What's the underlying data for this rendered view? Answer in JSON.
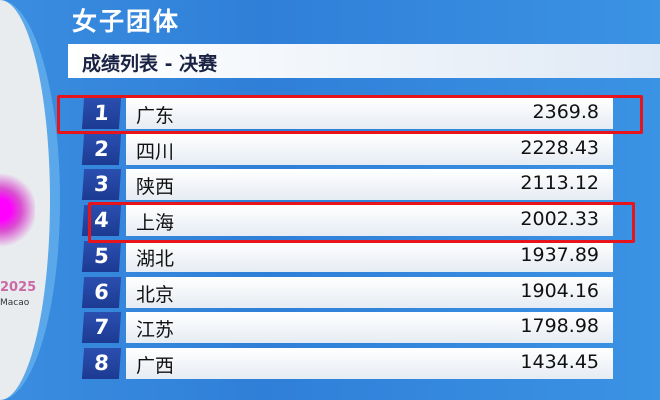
{
  "title": "女子团体",
  "subtitle": "成绩列表 - 决赛",
  "logo": {
    "year": "2025",
    "place": "Macao"
  },
  "highlight_color": "#e8141c",
  "rows": [
    {
      "rank": "1",
      "name": "广东",
      "score": "2369.8",
      "highlighted": true
    },
    {
      "rank": "2",
      "name": "四川",
      "score": "2228.43"
    },
    {
      "rank": "3",
      "name": "陕西",
      "score": "2113.12"
    },
    {
      "rank": "4",
      "name": "上海",
      "score": "2002.33",
      "highlighted": true
    },
    {
      "rank": "5",
      "name": "湖北",
      "score": "1937.89"
    },
    {
      "rank": "6",
      "name": "北京",
      "score": "1904.16"
    },
    {
      "rank": "7",
      "name": "江苏",
      "score": "1798.98"
    },
    {
      "rank": "8",
      "name": "广西",
      "score": "1434.45"
    }
  ]
}
